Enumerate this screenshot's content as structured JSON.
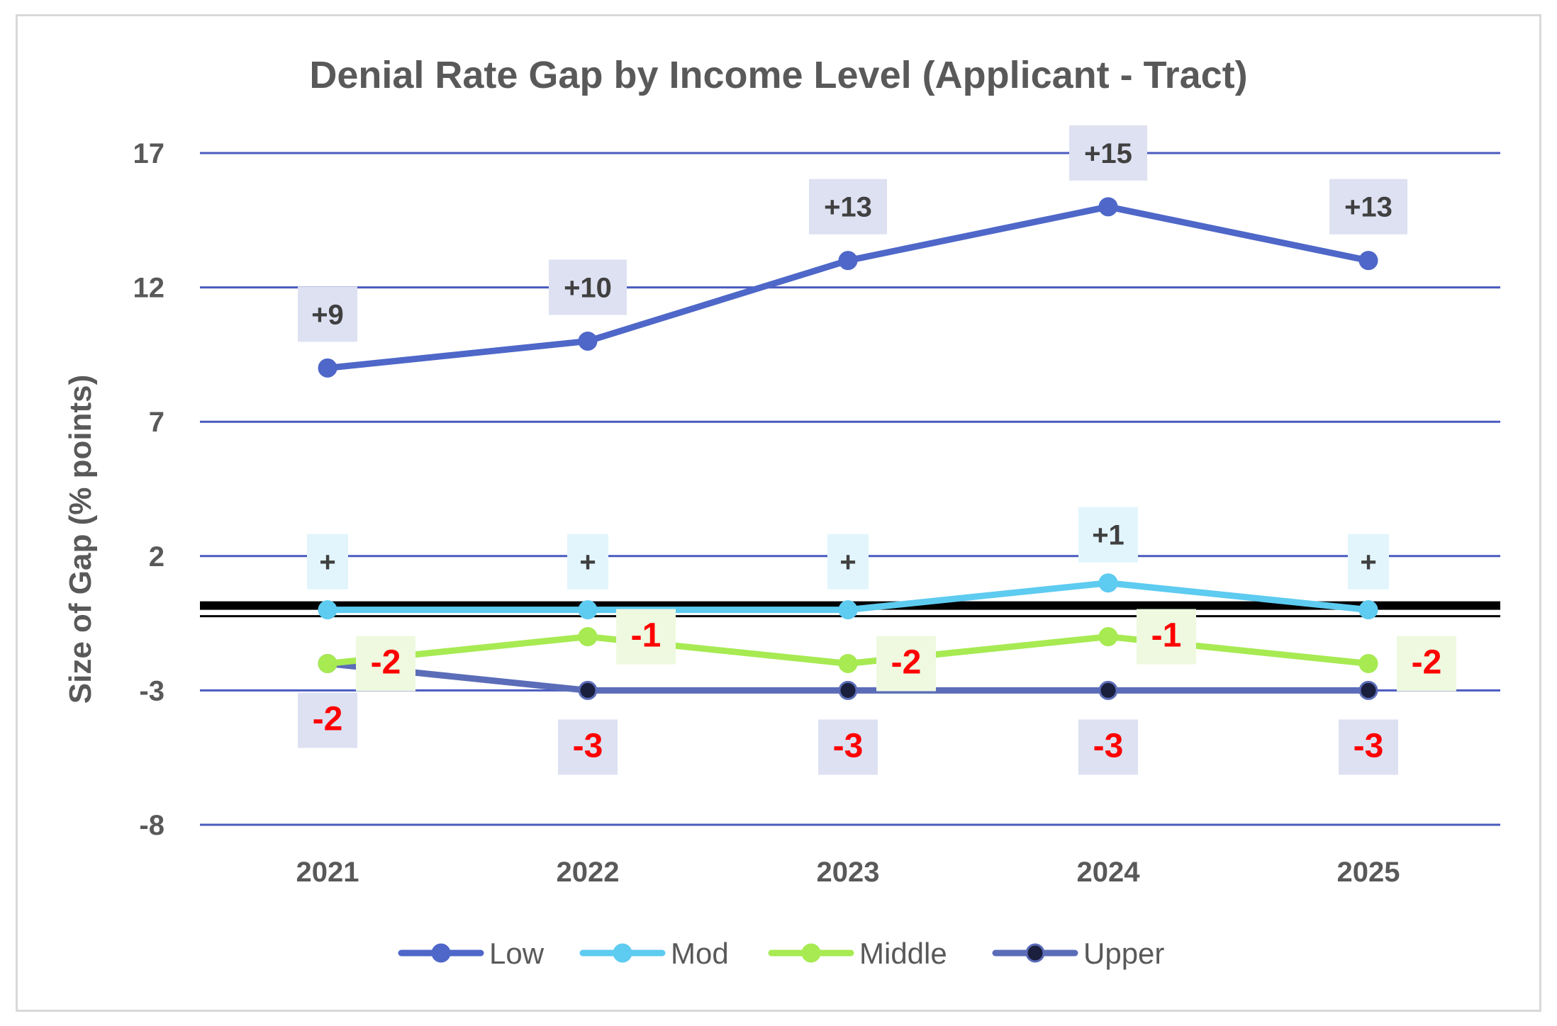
{
  "chart_data": {
    "type": "line",
    "title": "Denial Rate Gap by Income Level (Applicant - Tract)",
    "xlabel": "",
    "ylabel": "Size of Gap (% points)",
    "categories": [
      "2021",
      "2022",
      "2023",
      "2024",
      "2025"
    ],
    "ylim": [
      -8,
      17
    ],
    "yticks": [
      17,
      12,
      7,
      2,
      -3,
      -8
    ],
    "grid": true,
    "legend_position": "bottom",
    "series": [
      {
        "name": "Low",
        "values": [
          9,
          10,
          13,
          15,
          13
        ],
        "labels": [
          "+9",
          "+10",
          "+13",
          "+15",
          "+13"
        ],
        "color": "#4e67c8",
        "label_color": "#404040",
        "label_bg": "#dde1f2"
      },
      {
        "name": "Mod",
        "values": [
          0,
          0,
          0,
          1,
          0
        ],
        "labels": [
          "+",
          "+",
          "+",
          "+1",
          "+"
        ],
        "color": "#5ecbf0",
        "label_color": "#404040",
        "label_bg": "#e2f5fc"
      },
      {
        "name": "Middle",
        "values": [
          -2,
          -1,
          -2,
          -1,
          -2
        ],
        "labels": [
          "-2",
          "-1",
          "-2",
          "-1",
          "-2"
        ],
        "color": "#a7ea52",
        "label_color": "#ff0000",
        "label_bg": "#eef9e0"
      },
      {
        "name": "Upper",
        "values": [
          -2,
          -3,
          -3,
          -3,
          -3
        ],
        "labels": [
          "-2",
          "-3",
          "-3",
          "-3",
          "-3"
        ],
        "color": "#5b6cb8",
        "marker_color": "#1a1f3d",
        "label_color": "#ff0000",
        "label_bg": "#dde1f2"
      }
    ],
    "zero_line_color": "#000000",
    "gridline_color": "#4a5abf"
  }
}
